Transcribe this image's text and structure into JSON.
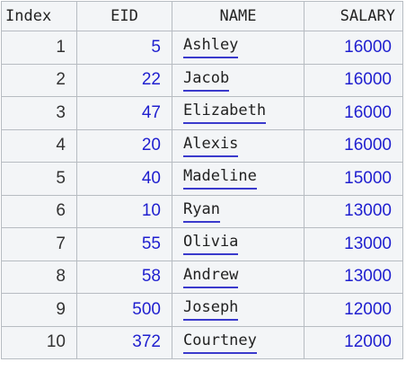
{
  "table": {
    "columns": [
      "Index",
      "EID",
      "NAME",
      "SALARY"
    ],
    "rows": [
      [
        "1",
        "5",
        "Ashley",
        "16000"
      ],
      [
        "2",
        "22",
        "Jacob",
        "16000"
      ],
      [
        "3",
        "47",
        "Elizabeth",
        "16000"
      ],
      [
        "4",
        "20",
        "Alexis",
        "16000"
      ],
      [
        "5",
        "40",
        "Madeline",
        "15000"
      ],
      [
        "6",
        "10",
        "Ryan",
        "13000"
      ],
      [
        "7",
        "55",
        "Olivia",
        "13000"
      ],
      [
        "8",
        "58",
        "Andrew",
        "13000"
      ],
      [
        "9",
        "500",
        "Joseph",
        "12000"
      ],
      [
        "10",
        "372",
        "Courtney",
        "12000"
      ]
    ]
  },
  "colors": {
    "numeric_value": "#1f1fcf",
    "link_underline": "#3a3acc",
    "grid_line": "#b7bcc2",
    "background": "#f3f5f7"
  }
}
